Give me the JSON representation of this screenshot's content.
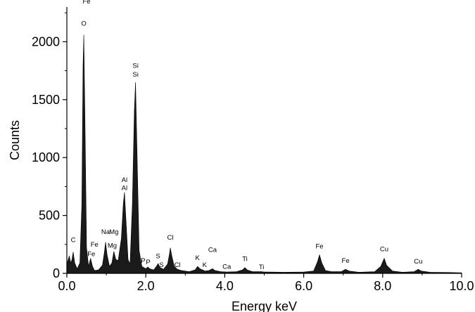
{
  "chart_data": {
    "type": "area",
    "title": "",
    "xlabel": "Energy keV",
    "ylabel": "Counts",
    "xlim": [
      0,
      10
    ],
    "ylim": [
      0,
      2300
    ],
    "x_ticks": [
      "0.0",
      "2.0",
      "4.0",
      "6.0",
      "8.0",
      "10.0"
    ],
    "y_ticks": [
      "0",
      "500",
      "1000",
      "1500",
      "2000"
    ],
    "grid": false,
    "fill_color": "#1a1a1a",
    "series": [
      {
        "values": [
          [
            0.0,
            80
          ],
          [
            0.06,
            150
          ],
          [
            0.1,
            90
          ],
          [
            0.13,
            120
          ],
          [
            0.16,
            185
          ],
          [
            0.2,
            90
          ],
          [
            0.26,
            40
          ],
          [
            0.33,
            90
          ],
          [
            0.38,
            600
          ],
          [
            0.41,
            1800
          ],
          [
            0.43,
            2060
          ],
          [
            0.46,
            1300
          ],
          [
            0.5,
            220
          ],
          [
            0.55,
            60
          ],
          [
            0.6,
            130
          ],
          [
            0.65,
            60
          ],
          [
            0.7,
            25
          ],
          [
            0.8,
            30
          ],
          [
            0.9,
            70
          ],
          [
            0.95,
            180
          ],
          [
            0.98,
            270
          ],
          [
            1.02,
            160
          ],
          [
            1.08,
            60
          ],
          [
            1.14,
            90
          ],
          [
            1.19,
            190
          ],
          [
            1.24,
            120
          ],
          [
            1.3,
            110
          ],
          [
            1.38,
            300
          ],
          [
            1.43,
            600
          ],
          [
            1.46,
            700
          ],
          [
            1.5,
            450
          ],
          [
            1.55,
            120
          ],
          [
            1.6,
            80
          ],
          [
            1.66,
            600
          ],
          [
            1.71,
            1400
          ],
          [
            1.74,
            1650
          ],
          [
            1.78,
            1000
          ],
          [
            1.83,
            200
          ],
          [
            1.9,
            60
          ],
          [
            2.0,
            40
          ],
          [
            2.05,
            55
          ],
          [
            2.1,
            40
          ],
          [
            2.2,
            30
          ],
          [
            2.27,
            60
          ],
          [
            2.31,
            85
          ],
          [
            2.36,
            50
          ],
          [
            2.45,
            35
          ],
          [
            2.55,
            80
          ],
          [
            2.6,
            170
          ],
          [
            2.62,
            220
          ],
          [
            2.66,
            150
          ],
          [
            2.72,
            60
          ],
          [
            2.8,
            35
          ],
          [
            2.9,
            25
          ],
          [
            3.1,
            15
          ],
          [
            3.25,
            30
          ],
          [
            3.31,
            60
          ],
          [
            3.37,
            40
          ],
          [
            3.5,
            20
          ],
          [
            3.6,
            25
          ],
          [
            3.69,
            40
          ],
          [
            3.75,
            25
          ],
          [
            3.9,
            15
          ],
          [
            4.05,
            12
          ],
          [
            4.3,
            15
          ],
          [
            4.45,
            30
          ],
          [
            4.51,
            50
          ],
          [
            4.57,
            30
          ],
          [
            4.7,
            15
          ],
          [
            4.93,
            15
          ],
          [
            5.0,
            12
          ],
          [
            5.5,
            10
          ],
          [
            6.0,
            12
          ],
          [
            6.25,
            20
          ],
          [
            6.35,
            100
          ],
          [
            6.4,
            160
          ],
          [
            6.46,
            90
          ],
          [
            6.55,
            25
          ],
          [
            6.7,
            15
          ],
          [
            6.95,
            15
          ],
          [
            7.06,
            35
          ],
          [
            7.15,
            20
          ],
          [
            7.4,
            10
          ],
          [
            7.8,
            15
          ],
          [
            7.95,
            60
          ],
          [
            8.04,
            130
          ],
          [
            8.1,
            70
          ],
          [
            8.25,
            20
          ],
          [
            8.5,
            10
          ],
          [
            8.8,
            15
          ],
          [
            8.9,
            35
          ],
          [
            8.98,
            20
          ],
          [
            9.2,
            10
          ],
          [
            9.6,
            8
          ],
          [
            10.0,
            5
          ]
        ]
      }
    ],
    "annotations": [
      {
        "text": "Fe",
        "x": 0.5,
        "y": 2330
      },
      {
        "text": "O",
        "x": 0.43,
        "y": 2140
      },
      {
        "text": "Si",
        "x": 1.74,
        "y": 1775
      },
      {
        "text": "Si",
        "x": 1.74,
        "y": 1700
      },
      {
        "text": "Al",
        "x": 1.46,
        "y": 790
      },
      {
        "text": "Al",
        "x": 1.46,
        "y": 720
      },
      {
        "text": "C",
        "x": 0.16,
        "y": 270
      },
      {
        "text": "Na",
        "x": 0.98,
        "y": 340
      },
      {
        "text": "Mg",
        "x": 1.19,
        "y": 340
      },
      {
        "text": "Fe",
        "x": 0.7,
        "y": 230
      },
      {
        "text": "Mg",
        "x": 1.15,
        "y": 220
      },
      {
        "text": "Fe",
        "x": 0.62,
        "y": 150
      },
      {
        "text": "Cl",
        "x": 2.62,
        "y": 290
      },
      {
        "text": "P",
        "x": 1.93,
        "y": 90
      },
      {
        "text": "P",
        "x": 2.06,
        "y": 80
      },
      {
        "text": "S",
        "x": 2.31,
        "y": 130
      },
      {
        "text": "S",
        "x": 2.4,
        "y": 55
      },
      {
        "text": "Cl",
        "x": 2.8,
        "y": 55
      },
      {
        "text": "K",
        "x": 3.31,
        "y": 115
      },
      {
        "text": "K",
        "x": 3.49,
        "y": 55
      },
      {
        "text": "Ca",
        "x": 3.69,
        "y": 185
      },
      {
        "text": "Ca",
        "x": 4.05,
        "y": 40
      },
      {
        "text": "Ti",
        "x": 4.51,
        "y": 105
      },
      {
        "text": "Ti",
        "x": 4.93,
        "y": 35
      },
      {
        "text": "Fe",
        "x": 6.4,
        "y": 215
      },
      {
        "text": "Fe",
        "x": 7.06,
        "y": 90
      },
      {
        "text": "Cu",
        "x": 8.04,
        "y": 190
      },
      {
        "text": "Cu",
        "x": 8.9,
        "y": 85
      }
    ]
  }
}
